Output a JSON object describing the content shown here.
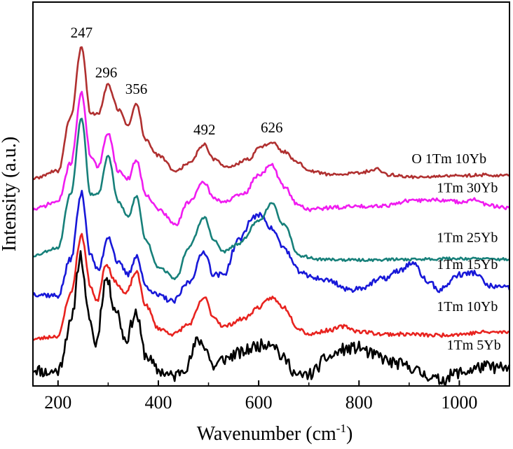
{
  "chart_data": {
    "type": "line",
    "title": "",
    "xlabel": "Wavenumber (cm",
    "xlabel_sup": "-1",
    "xlabel_close": ")",
    "ylabel": "Intensity (a.u.)",
    "xlim": [
      150,
      1100
    ],
    "ylim": [
      0,
      10
    ],
    "xticks": [
      200,
      400,
      600,
      800,
      1000
    ],
    "grid": false,
    "yticks_shown": false,
    "peak_labels": [
      {
        "text": "247",
        "x": 247
      },
      {
        "text": "296",
        "x": 296
      },
      {
        "text": "356",
        "x": 356
      },
      {
        "text": "492",
        "x": 492
      },
      {
        "text": "626",
        "x": 626
      }
    ],
    "series": [
      {
        "name": "1Tm 5Yb",
        "color": "#000000",
        "noise": 0.16,
        "seed": 11,
        "points": [
          [
            150,
            0.45
          ],
          [
            180,
            0.35
          ],
          [
            200,
            0.4
          ],
          [
            225,
            1.6
          ],
          [
            245,
            3.4
          ],
          [
            260,
            1.9
          ],
          [
            275,
            1.1
          ],
          [
            296,
            2.8
          ],
          [
            315,
            2.0
          ],
          [
            335,
            1.2
          ],
          [
            355,
            1.9
          ],
          [
            375,
            0.8
          ],
          [
            400,
            0.4
          ],
          [
            430,
            0.25
          ],
          [
            455,
            0.5
          ],
          [
            480,
            1.2
          ],
          [
            492,
            1.05
          ],
          [
            510,
            0.5
          ],
          [
            530,
            0.7
          ],
          [
            560,
            0.85
          ],
          [
            600,
            1.05
          ],
          [
            626,
            1.15
          ],
          [
            650,
            0.7
          ],
          [
            680,
            0.25
          ],
          [
            700,
            0.3
          ],
          [
            740,
            0.75
          ],
          [
            770,
            0.95
          ],
          [
            800,
            1.0
          ],
          [
            830,
            0.8
          ],
          [
            870,
            0.6
          ],
          [
            900,
            0.5
          ],
          [
            930,
            0.3
          ],
          [
            960,
            0.15
          ],
          [
            1000,
            0.35
          ],
          [
            1050,
            0.5
          ],
          [
            1100,
            0.45
          ]
        ]
      },
      {
        "name": "1Tm 10Yb",
        "color": "#e8231f",
        "noise": 0.05,
        "seed": 23,
        "points": [
          [
            150,
            1.22
          ],
          [
            200,
            1.3
          ],
          [
            225,
            2.4
          ],
          [
            247,
            3.92
          ],
          [
            265,
            2.6
          ],
          [
            277,
            2.2
          ],
          [
            296,
            3.18
          ],
          [
            315,
            2.7
          ],
          [
            335,
            2.4
          ],
          [
            356,
            2.97
          ],
          [
            375,
            2.1
          ],
          [
            400,
            1.5
          ],
          [
            430,
            1.35
          ],
          [
            460,
            1.6
          ],
          [
            492,
            2.3
          ],
          [
            510,
            1.8
          ],
          [
            530,
            1.55
          ],
          [
            570,
            1.75
          ],
          [
            600,
            2.05
          ],
          [
            626,
            2.3
          ],
          [
            650,
            2.05
          ],
          [
            680,
            1.5
          ],
          [
            700,
            1.35
          ],
          [
            740,
            1.45
          ],
          [
            770,
            1.55
          ],
          [
            800,
            1.42
          ],
          [
            850,
            1.35
          ],
          [
            900,
            1.35
          ],
          [
            950,
            1.32
          ],
          [
            1000,
            1.35
          ],
          [
            1050,
            1.4
          ],
          [
            1100,
            1.4
          ]
        ]
      },
      {
        "name": "1Tm 15Yb",
        "color": "#1818d8",
        "noise": 0.07,
        "seed": 37,
        "points": [
          [
            150,
            2.4
          ],
          [
            200,
            2.35
          ],
          [
            225,
            3.3
          ],
          [
            247,
            5.02
          ],
          [
            265,
            3.4
          ],
          [
            280,
            3.0
          ],
          [
            300,
            3.9
          ],
          [
            320,
            3.2
          ],
          [
            340,
            2.9
          ],
          [
            356,
            3.4
          ],
          [
            375,
            2.6
          ],
          [
            400,
            2.35
          ],
          [
            430,
            2.2
          ],
          [
            460,
            2.7
          ],
          [
            492,
            3.5
          ],
          [
            510,
            2.9
          ],
          [
            530,
            2.9
          ],
          [
            560,
            3.8
          ],
          [
            590,
            4.4
          ],
          [
            605,
            4.45
          ],
          [
            626,
            4.1
          ],
          [
            650,
            3.6
          ],
          [
            680,
            3.0
          ],
          [
            700,
            2.85
          ],
          [
            740,
            2.75
          ],
          [
            780,
            2.5
          ],
          [
            800,
            2.55
          ],
          [
            850,
            2.8
          ],
          [
            880,
            3.0
          ],
          [
            905,
            3.2
          ],
          [
            940,
            2.7
          ],
          [
            960,
            2.5
          ],
          [
            1000,
            2.9
          ],
          [
            1030,
            2.95
          ],
          [
            1060,
            2.6
          ],
          [
            1100,
            2.55
          ]
        ]
      },
      {
        "name": "1Tm 25Yb",
        "color": "#17807a",
        "noise": 0.035,
        "seed": 53,
        "points": [
          [
            150,
            3.4
          ],
          [
            200,
            3.6
          ],
          [
            225,
            5.0
          ],
          [
            247,
            6.98
          ],
          [
            265,
            5.0
          ],
          [
            280,
            5.0
          ],
          [
            300,
            6.0
          ],
          [
            320,
            4.8
          ],
          [
            340,
            4.4
          ],
          [
            356,
            4.95
          ],
          [
            375,
            3.8
          ],
          [
            400,
            3.1
          ],
          [
            435,
            2.8
          ],
          [
            460,
            3.6
          ],
          [
            492,
            4.4
          ],
          [
            510,
            3.8
          ],
          [
            530,
            3.5
          ],
          [
            560,
            3.7
          ],
          [
            600,
            4.3
          ],
          [
            626,
            4.75
          ],
          [
            650,
            4.2
          ],
          [
            680,
            3.4
          ],
          [
            720,
            3.3
          ],
          [
            800,
            3.28
          ],
          [
            900,
            3.3
          ],
          [
            1000,
            3.32
          ],
          [
            1100,
            3.3
          ]
        ]
      },
      {
        "name": "1Tm 30Yb",
        "color": "#f01cf0",
        "noise": 0.05,
        "seed": 71,
        "points": [
          [
            150,
            4.6
          ],
          [
            200,
            4.8
          ],
          [
            225,
            5.8
          ],
          [
            247,
            7.62
          ],
          [
            265,
            6.0
          ],
          [
            280,
            5.7
          ],
          [
            300,
            6.6
          ],
          [
            320,
            5.6
          ],
          [
            340,
            5.4
          ],
          [
            356,
            5.9
          ],
          [
            375,
            5.0
          ],
          [
            400,
            4.6
          ],
          [
            435,
            4.2
          ],
          [
            460,
            4.8
          ],
          [
            492,
            5.3
          ],
          [
            510,
            4.9
          ],
          [
            530,
            4.8
          ],
          [
            570,
            5.0
          ],
          [
            600,
            5.5
          ],
          [
            626,
            5.75
          ],
          [
            650,
            5.2
          ],
          [
            680,
            4.7
          ],
          [
            700,
            4.6
          ],
          [
            750,
            4.65
          ],
          [
            800,
            4.68
          ],
          [
            850,
            4.7
          ],
          [
            900,
            4.82
          ],
          [
            950,
            4.85
          ],
          [
            1000,
            4.8
          ],
          [
            1030,
            4.85
          ],
          [
            1060,
            4.7
          ],
          [
            1100,
            4.62
          ]
        ]
      },
      {
        "name": "O 1Tm 10Yb",
        "color": "#b03030",
        "noise": 0.04,
        "seed": 89,
        "points": [
          [
            150,
            5.4
          ],
          [
            200,
            5.6
          ],
          [
            225,
            7.0
          ],
          [
            247,
            8.82
          ],
          [
            265,
            7.1
          ],
          [
            280,
            7.1
          ],
          [
            300,
            7.85
          ],
          [
            320,
            7.2
          ],
          [
            340,
            6.8
          ],
          [
            356,
            7.35
          ],
          [
            375,
            6.4
          ],
          [
            400,
            6.0
          ],
          [
            435,
            5.6
          ],
          [
            460,
            5.8
          ],
          [
            492,
            6.3
          ],
          [
            510,
            5.9
          ],
          [
            540,
            5.7
          ],
          [
            580,
            5.9
          ],
          [
            600,
            6.2
          ],
          [
            626,
            6.35
          ],
          [
            650,
            6.1
          ],
          [
            680,
            5.8
          ],
          [
            700,
            5.6
          ],
          [
            750,
            5.5
          ],
          [
            800,
            5.55
          ],
          [
            835,
            5.65
          ],
          [
            860,
            5.5
          ],
          [
            900,
            5.45
          ],
          [
            950,
            5.45
          ],
          [
            1000,
            5.48
          ],
          [
            1050,
            5.5
          ],
          [
            1100,
            5.48
          ]
        ]
      }
    ],
    "series_labels": [
      {
        "text": "O 1Tm 10Yb",
        "x": 905,
        "y": 5.8
      },
      {
        "text": "1Tm 30Yb",
        "x": 955,
        "y": 5.05
      },
      {
        "text": "1Tm 25Yb",
        "x": 955,
        "y": 3.75
      },
      {
        "text": "1Tm 15Yb",
        "x": 955,
        "y": 3.05
      },
      {
        "text": "1Tm 10Yb",
        "x": 955,
        "y": 1.95
      },
      {
        "text": "1Tm 5Yb",
        "x": 975,
        "y": 0.95
      }
    ]
  }
}
